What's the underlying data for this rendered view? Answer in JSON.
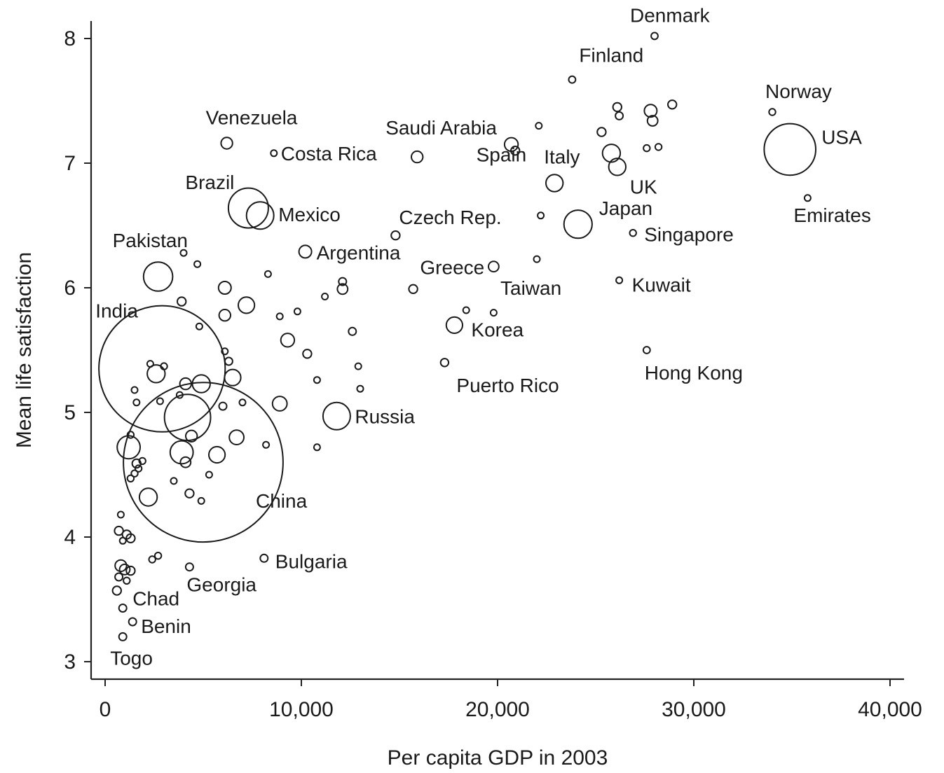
{
  "chart_data": {
    "type": "scatter",
    "xlabel": "Per capita GDP in 2003",
    "ylabel": "Mean life satisfaction",
    "xlim": [
      -700,
      40500
    ],
    "ylim": [
      2.85,
      8.25
    ],
    "x_ticks": [
      0,
      10000,
      20000,
      30000,
      40000
    ],
    "x_tick_labels": [
      "0",
      "10,000",
      "20,000",
      "30,000",
      "40,000"
    ],
    "y_ticks": [
      3,
      4,
      5,
      6,
      7,
      8
    ],
    "y_tick_labels": [
      "3",
      "4",
      "5",
      "6",
      "7",
      "8"
    ],
    "grid": false,
    "bubble_size": "population",
    "points": [
      {
        "label": "Denmark",
        "x": 28000,
        "y": 8.02,
        "size": 0.9
      },
      {
        "label": "Finland",
        "x": 23800,
        "y": 7.67,
        "size": 0.9
      },
      {
        "label": "Norway",
        "x": 34000,
        "y": 7.41,
        "size": 0.8
      },
      {
        "label": "USA",
        "x": 34900,
        "y": 7.11,
        "size": 50
      },
      {
        "label": "Emirates",
        "x": 35800,
        "y": 6.72,
        "size": 0.6
      },
      {
        "label": "Venezuela",
        "x": 6200,
        "y": 7.16,
        "size": 2.5
      },
      {
        "label": "Costa Rica",
        "x": 8600,
        "y": 7.08,
        "size": 0.6
      },
      {
        "label": "Saudi Arabia",
        "x": 15900,
        "y": 7.05,
        "size": 2.5
      },
      {
        "label": "Spain",
        "x": 20700,
        "y": 7.15,
        "size": 3.5
      },
      {
        "label": "Italy",
        "x": 22900,
        "y": 6.84,
        "size": 5.5
      },
      {
        "label": "UK",
        "x": 26100,
        "y": 6.97,
        "size": 5.5
      },
      {
        "label": "Brazil",
        "x": 7300,
        "y": 6.64,
        "size": 30
      },
      {
        "label": "Mexico",
        "x": 7900,
        "y": 6.58,
        "size": 14
      },
      {
        "label": "Czech Rep.",
        "x": 14800,
        "y": 6.42,
        "size": 1.4
      },
      {
        "label": "Japan",
        "x": 24100,
        "y": 6.51,
        "size": 15
      },
      {
        "label": "Singapore",
        "x": 26900,
        "y": 6.44,
        "size": 0.8
      },
      {
        "label": "Argentina",
        "x": 10200,
        "y": 6.29,
        "size": 3
      },
      {
        "label": "Pakistan",
        "x": 2700,
        "y": 6.09,
        "size": 16
      },
      {
        "label": "Greece",
        "x": 19800,
        "y": 6.17,
        "size": 2
      },
      {
        "label": "Taiwan",
        "x": 22000,
        "y": 6.23,
        "size": 0.3
      },
      {
        "label": "Kuwait",
        "x": 26200,
        "y": 6.06,
        "size": 0.5
      },
      {
        "label": "India",
        "x": 2900,
        "y": 5.35,
        "size": 300
      },
      {
        "label": "Korea",
        "x": 17800,
        "y": 5.7,
        "size": 5
      },
      {
        "label": "Hong Kong",
        "x": 27600,
        "y": 5.5,
        "size": 0.9
      },
      {
        "label": "Puerto Rico",
        "x": 17300,
        "y": 5.4,
        "size": 1.2
      },
      {
        "label": "Russia",
        "x": 11800,
        "y": 4.97,
        "size": 14
      },
      {
        "label": "China",
        "x": 5000,
        "y": 4.6,
        "size": 480
      },
      {
        "label": "Bulgaria",
        "x": 8100,
        "y": 3.83,
        "size": 1.1
      },
      {
        "label": "Georgia",
        "x": 4300,
        "y": 3.76,
        "size": 1.1
      },
      {
        "label": "Chad",
        "x": 900,
        "y": 3.43,
        "size": 1.1
      },
      {
        "label": "Benin",
        "x": 1400,
        "y": 3.32,
        "size": 1.1
      },
      {
        "label": "Togo",
        "x": 900,
        "y": 3.2,
        "size": 1.1
      },
      {
        "label": "",
        "x": 26100,
        "y": 7.45,
        "size": 1.4
      },
      {
        "label": "",
        "x": 26200,
        "y": 7.38,
        "size": 1.1
      },
      {
        "label": "",
        "x": 27800,
        "y": 7.42,
        "size": 3
      },
      {
        "label": "",
        "x": 27900,
        "y": 7.34,
        "size": 2
      },
      {
        "label": "",
        "x": 28900,
        "y": 7.47,
        "size": 1.4
      },
      {
        "label": "",
        "x": 25300,
        "y": 7.25,
        "size": 1.4
      },
      {
        "label": "",
        "x": 22100,
        "y": 7.3,
        "size": 0.6
      },
      {
        "label": "",
        "x": 25800,
        "y": 7.08,
        "size": 6
      },
      {
        "label": "",
        "x": 27600,
        "y": 7.12,
        "size": 0.8
      },
      {
        "label": "",
        "x": 28200,
        "y": 7.13,
        "size": 0.8
      },
      {
        "label": "",
        "x": 20900,
        "y": 7.1,
        "size": 1.4
      },
      {
        "label": "",
        "x": 22200,
        "y": 6.58,
        "size": 0.6
      },
      {
        "label": "",
        "x": 4000,
        "y": 6.28,
        "size": 0.6
      },
      {
        "label": "",
        "x": 4700,
        "y": 6.19,
        "size": 0.4
      },
      {
        "label": "",
        "x": 8300,
        "y": 6.11,
        "size": 0.4
      },
      {
        "label": "",
        "x": 6100,
        "y": 6.0,
        "size": 3
      },
      {
        "label": "",
        "x": 12100,
        "y": 6.05,
        "size": 1.1
      },
      {
        "label": "",
        "x": 12100,
        "y": 5.99,
        "size": 2
      },
      {
        "label": "",
        "x": 11200,
        "y": 5.93,
        "size": 0.6
      },
      {
        "label": "",
        "x": 15700,
        "y": 5.99,
        "size": 1.4
      },
      {
        "label": "",
        "x": 3900,
        "y": 5.89,
        "size": 1.4
      },
      {
        "label": "",
        "x": 7200,
        "y": 5.86,
        "size": 5
      },
      {
        "label": "",
        "x": 6100,
        "y": 5.78,
        "size": 2.5
      },
      {
        "label": "",
        "x": 9800,
        "y": 5.81,
        "size": 0.6
      },
      {
        "label": "",
        "x": 8900,
        "y": 5.77,
        "size": 0.6
      },
      {
        "label": "",
        "x": 18400,
        "y": 5.82,
        "size": 0.4
      },
      {
        "label": "",
        "x": 19800,
        "y": 5.8,
        "size": 0.4
      },
      {
        "label": "",
        "x": 4800,
        "y": 5.69,
        "size": 0.4
      },
      {
        "label": "",
        "x": 12600,
        "y": 5.65,
        "size": 1.1
      },
      {
        "label": "",
        "x": 9300,
        "y": 5.58,
        "size": 3.5
      },
      {
        "label": "",
        "x": 10300,
        "y": 5.47,
        "size": 1.4
      },
      {
        "label": "",
        "x": 6100,
        "y": 5.49,
        "size": 0.4
      },
      {
        "label": "",
        "x": 6300,
        "y": 5.41,
        "size": 1.1
      },
      {
        "label": "",
        "x": 2300,
        "y": 5.39,
        "size": 0.6
      },
      {
        "label": "",
        "x": 3000,
        "y": 5.37,
        "size": 0.8
      },
      {
        "label": "",
        "x": 2600,
        "y": 5.31,
        "size": 6
      },
      {
        "label": "",
        "x": 6500,
        "y": 5.28,
        "size": 5
      },
      {
        "label": "",
        "x": 12900,
        "y": 5.37,
        "size": 0.4
      },
      {
        "label": "",
        "x": 4100,
        "y": 5.23,
        "size": 2.5
      },
      {
        "label": "",
        "x": 4900,
        "y": 5.23,
        "size": 6
      },
      {
        "label": "",
        "x": 10800,
        "y": 5.26,
        "size": 0.6
      },
      {
        "label": "",
        "x": 13000,
        "y": 5.19,
        "size": 0.6
      },
      {
        "label": "",
        "x": 1500,
        "y": 5.18,
        "size": 0.4
      },
      {
        "label": "",
        "x": 3800,
        "y": 5.14,
        "size": 0.4
      },
      {
        "label": "",
        "x": 1600,
        "y": 5.08,
        "size": 0.4
      },
      {
        "label": "",
        "x": 2800,
        "y": 5.09,
        "size": 0.4
      },
      {
        "label": "",
        "x": 6000,
        "y": 5.05,
        "size": 1.1
      },
      {
        "label": "",
        "x": 7000,
        "y": 5.08,
        "size": 0.6
      },
      {
        "label": "",
        "x": 8900,
        "y": 5.07,
        "size": 4
      },
      {
        "label": "",
        "x": 4200,
        "y": 4.96,
        "size": 40
      },
      {
        "label": "",
        "x": 1300,
        "y": 4.82,
        "size": 0.8
      },
      {
        "label": "",
        "x": 1200,
        "y": 4.72,
        "size": 10
      },
      {
        "label": "",
        "x": 4400,
        "y": 4.81,
        "size": 2.5
      },
      {
        "label": "",
        "x": 6700,
        "y": 4.8,
        "size": 4
      },
      {
        "label": "",
        "x": 3900,
        "y": 4.68,
        "size": 10
      },
      {
        "label": "",
        "x": 5700,
        "y": 4.66,
        "size": 5
      },
      {
        "label": "",
        "x": 8200,
        "y": 4.74,
        "size": 0.3
      },
      {
        "label": "",
        "x": 10800,
        "y": 4.72,
        "size": 0.4
      },
      {
        "label": "",
        "x": 1600,
        "y": 4.59,
        "size": 1.4
      },
      {
        "label": "",
        "x": 1900,
        "y": 4.61,
        "size": 0.8
      },
      {
        "label": "",
        "x": 1700,
        "y": 4.55,
        "size": 0.8
      },
      {
        "label": "",
        "x": 1500,
        "y": 4.51,
        "size": 0.8
      },
      {
        "label": "",
        "x": 4100,
        "y": 4.6,
        "size": 2
      },
      {
        "label": "",
        "x": 1300,
        "y": 4.47,
        "size": 0.8
      },
      {
        "label": "",
        "x": 3500,
        "y": 4.45,
        "size": 0.4
      },
      {
        "label": "",
        "x": 5300,
        "y": 4.5,
        "size": 0.4
      },
      {
        "label": "",
        "x": 2200,
        "y": 4.32,
        "size": 6
      },
      {
        "label": "",
        "x": 4300,
        "y": 4.35,
        "size": 1.4
      },
      {
        "label": "",
        "x": 4900,
        "y": 4.29,
        "size": 0.4
      },
      {
        "label": "",
        "x": 800,
        "y": 4.18,
        "size": 0.6
      },
      {
        "label": "",
        "x": 700,
        "y": 4.05,
        "size": 1.4
      },
      {
        "label": "",
        "x": 1100,
        "y": 4.02,
        "size": 1.4
      },
      {
        "label": "",
        "x": 1300,
        "y": 3.99,
        "size": 1.4
      },
      {
        "label": "",
        "x": 900,
        "y": 3.97,
        "size": 0.6
      },
      {
        "label": "",
        "x": 2400,
        "y": 3.82,
        "size": 0.8
      },
      {
        "label": "",
        "x": 2700,
        "y": 3.85,
        "size": 0.8
      },
      {
        "label": "",
        "x": 800,
        "y": 3.77,
        "size": 2.5
      },
      {
        "label": "",
        "x": 1000,
        "y": 3.74,
        "size": 2
      },
      {
        "label": "",
        "x": 1300,
        "y": 3.73,
        "size": 1.4
      },
      {
        "label": "",
        "x": 700,
        "y": 3.68,
        "size": 1.1
      },
      {
        "label": "",
        "x": 1100,
        "y": 3.65,
        "size": 0.8
      },
      {
        "label": "",
        "x": 600,
        "y": 3.57,
        "size": 1.4
      }
    ]
  }
}
